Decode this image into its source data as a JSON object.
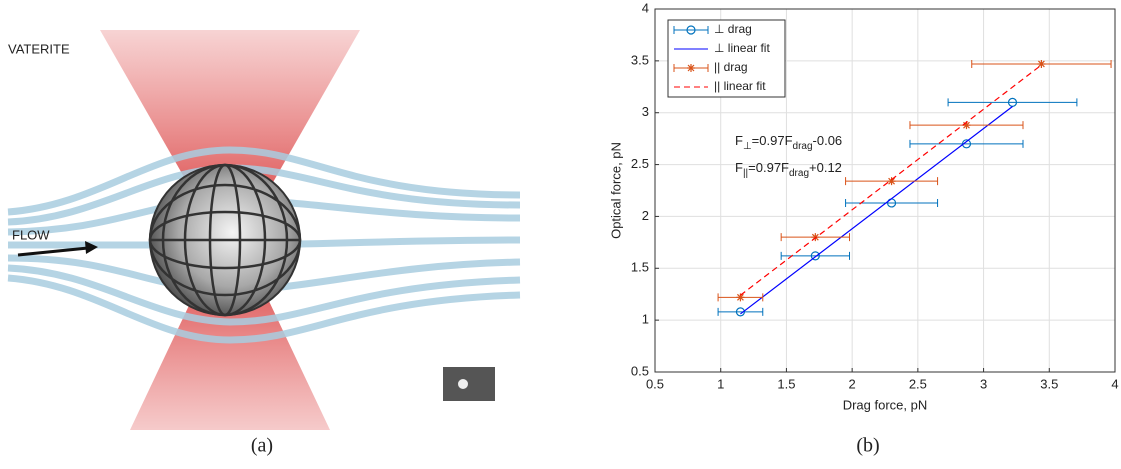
{
  "panel_a": {
    "labels": [
      "VATERITE",
      "FLOW"
    ]
  },
  "captions": [
    "(a)",
    "(b)"
  ],
  "chart_data": {
    "type": "scatter",
    "x_label": "Drag force, pN",
    "y_label": "Optical force, pN",
    "xlim": [
      0.5,
      4
    ],
    "xticks": [
      0.5,
      1,
      1.5,
      2,
      2.5,
      3,
      3.5,
      4
    ],
    "ylim": [
      0.5,
      4
    ],
    "yticks": [
      0.5,
      1,
      1.5,
      2,
      2.5,
      3,
      3.5,
      4
    ],
    "grid": true,
    "legend": "upper left",
    "series": [
      {
        "name": "⊥ drag",
        "type": "errorbar",
        "marker": "o",
        "color": "#0072bd",
        "x": [
          1.15,
          1.72,
          2.3,
          2.87,
          3.22
        ],
        "values": [
          1.08,
          1.62,
          2.13,
          2.7,
          3.1
        ],
        "xerr": [
          0.17,
          0.26,
          0.35,
          0.43,
          0.49
        ]
      },
      {
        "name": "⊥ linear fit",
        "type": "line",
        "dash": false,
        "color": "#0000ff",
        "x": [
          1.15,
          3.22
        ],
        "values": [
          1.06,
          3.06
        ]
      },
      {
        "name": "|| drag",
        "type": "errorbar",
        "marker": "*",
        "color": "#d95319",
        "x": [
          1.15,
          1.72,
          2.3,
          2.87,
          3.44
        ],
        "values": [
          1.22,
          1.8,
          2.34,
          2.88,
          3.47
        ],
        "xerr": [
          0.17,
          0.26,
          0.35,
          0.43,
          0.53
        ]
      },
      {
        "name": "|| linear fit",
        "type": "line",
        "dash": true,
        "color": "#ff0000",
        "x": [
          1.15,
          3.44
        ],
        "values": [
          1.24,
          3.46
        ]
      }
    ],
    "annotations": [
      [
        "F",
        "⊥",
        "=0.97F",
        "drag",
        "-0.06"
      ],
      [
        "F",
        "||",
        "=0.97F",
        "drag",
        "+0.12"
      ]
    ]
  }
}
